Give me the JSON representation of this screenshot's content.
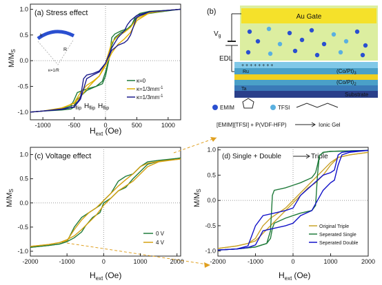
{
  "chart_data": [
    {
      "panel": "(a)",
      "title": "Stress effect",
      "type": "line",
      "xlabel": "H_ext (Oe)",
      "ylabel": "M/M_s",
      "xlim": [
        -1200,
        1200
      ],
      "ylim": [
        -1.15,
        1.1
      ],
      "xticks": [
        -1000,
        -500,
        0,
        500,
        1000
      ],
      "yticks": [
        -1.0,
        -0.5,
        0.0,
        0.5,
        1.0
      ],
      "tick_labels_x": [
        "-1000",
        "-500",
        "0",
        "500",
        "1000"
      ],
      "tick_labels_y": [
        "-1.0",
        "-0.5",
        "0.0",
        "0.5",
        "1.0"
      ],
      "legend": {
        "placement": "bottom-right",
        "entries": [
          "κ=0",
          "κ=1/3mm⁻¹",
          "κ=1/3mm⁻¹"
        ]
      },
      "annotations": [
        "H_flip H_flip H_flip",
        "h",
        "R",
        "κ=1/R"
      ],
      "series": [
        {
          "color": "#1f7a3a",
          "x": [
            -1200,
            -1000,
            -700,
            -550,
            -500,
            -450,
            -300,
            -150,
            -50,
            0,
            60,
            100,
            150,
            250,
            350,
            420,
            480,
            550,
            700,
            1000,
            1200
          ],
          "up": [
            -1.0,
            -0.98,
            -0.94,
            -0.88,
            -0.76,
            -0.62,
            -0.55,
            -0.5,
            -0.4,
            -0.22,
            0.05,
            0.3,
            0.45,
            0.55,
            0.6,
            0.7,
            0.86,
            0.92,
            0.96,
            0.98,
            1.0
          ],
          "down": [
            -1.0,
            -0.98,
            -0.96,
            -0.94,
            -0.9,
            -0.75,
            -0.58,
            -0.5,
            -0.45,
            -0.3,
            0.05,
            0.45,
            0.52,
            0.58,
            0.62,
            0.7,
            0.82,
            0.88,
            0.92,
            0.97,
            1.0
          ]
        },
        {
          "color": "#e0b000",
          "x": [
            -1200,
            -1000,
            -700,
            -500,
            -400,
            -300,
            -200,
            -100,
            0,
            100,
            200,
            300,
            400,
            500,
            700,
            1000,
            1200
          ],
          "up": [
            -1.0,
            -0.98,
            -0.93,
            -0.82,
            -0.62,
            -0.48,
            -0.4,
            -0.3,
            -0.1,
            0.15,
            0.32,
            0.42,
            0.55,
            0.78,
            0.93,
            0.98,
            1.0
          ],
          "down": [
            -1.0,
            -0.98,
            -0.92,
            -0.83,
            -0.7,
            -0.55,
            -0.42,
            -0.3,
            -0.05,
            0.35,
            0.48,
            0.55,
            0.65,
            0.82,
            0.93,
            0.98,
            1.0
          ]
        },
        {
          "color": "#1a1a8c",
          "x": [
            -1200,
            -1000,
            -700,
            -500,
            -400,
            -350,
            -300,
            -200,
            -100,
            0,
            100,
            200,
            300,
            350,
            400,
            500,
            700,
            1000,
            1200
          ],
          "up": [
            -1.0,
            -0.98,
            -0.94,
            -0.9,
            -0.72,
            -0.35,
            -0.28,
            -0.25,
            -0.2,
            -0.05,
            0.2,
            0.3,
            0.35,
            0.4,
            0.5,
            0.85,
            0.95,
            0.98,
            1.0
          ],
          "down": [
            -1.0,
            -0.98,
            -0.95,
            -0.9,
            -0.75,
            -0.55,
            -0.35,
            -0.28,
            -0.22,
            -0.05,
            0.25,
            0.45,
            0.58,
            0.7,
            0.78,
            0.88,
            0.95,
            0.98,
            1.0
          ]
        }
      ]
    },
    {
      "panel": "(c)",
      "title": "Voltage effect",
      "type": "line",
      "xlabel": "H_ext (Oe)",
      "ylabel": "M/M_s",
      "xlim": [
        -2000,
        2100
      ],
      "ylim": [
        -1.1,
        1.15
      ],
      "xticks": [
        -2000,
        -1000,
        0,
        1000,
        2000
      ],
      "yticks": [
        -1.0,
        -0.5,
        0.0,
        0.5,
        1.0
      ],
      "tick_labels_x": [
        "-2000",
        "-1000",
        "0",
        "1000",
        "2000"
      ],
      "tick_labels_y": [
        "-1.0",
        "-0.5",
        "0.0",
        "0.5",
        "1.0"
      ],
      "legend": {
        "placement": "bottom-right",
        "entries": [
          "0 V",
          "4 V"
        ]
      },
      "series": [
        {
          "name": "0 V",
          "color": "#1f7a3a",
          "x": [
            -2000,
            -1500,
            -1200,
            -1000,
            -800,
            -600,
            -500,
            -300,
            -100,
            0,
            200,
            400,
            600,
            800,
            1000,
            1200,
            1500,
            2000,
            2100
          ],
          "up": [
            -0.92,
            -0.88,
            -0.85,
            -0.8,
            -0.5,
            -0.3,
            -0.25,
            -0.15,
            -0.05,
            0.05,
            0.2,
            0.45,
            0.55,
            0.6,
            0.75,
            0.85,
            0.88,
            0.92,
            0.93
          ],
          "down": [
            -0.92,
            -0.88,
            -0.85,
            -0.8,
            -0.72,
            -0.6,
            -0.48,
            -0.3,
            -0.2,
            0.0,
            0.1,
            0.25,
            0.32,
            0.5,
            0.65,
            0.8,
            0.86,
            0.92,
            0.93
          ]
        },
        {
          "name": "4 V",
          "color": "#d4a010",
          "x": [
            -2000,
            -1500,
            -1200,
            -1000,
            -800,
            -600,
            -400,
            -200,
            0,
            200,
            400,
            600,
            800,
            1000,
            1200,
            1500,
            2000,
            2100
          ],
          "up": [
            -0.9,
            -0.86,
            -0.82,
            -0.78,
            -0.55,
            -0.35,
            -0.2,
            -0.1,
            0.05,
            0.2,
            0.35,
            0.48,
            0.6,
            0.75,
            0.82,
            0.86,
            0.9,
            0.91
          ],
          "down": [
            -0.9,
            -0.86,
            -0.82,
            -0.76,
            -0.68,
            -0.55,
            -0.4,
            -0.25,
            -0.05,
            0.1,
            0.25,
            0.35,
            0.45,
            0.6,
            0.75,
            0.85,
            0.9,
            0.91
          ]
        }
      ]
    },
    {
      "panel": "(d)",
      "title": "Single + Double ⟶ Triple",
      "type": "line",
      "xlabel": "H_ext (Oe)",
      "ylabel": "M/M_s",
      "xlim": [
        -2000,
        2000
      ],
      "ylim": [
        -1.1,
        1.05
      ],
      "xticks": [
        -2000,
        -1000,
        0,
        1000,
        2000
      ],
      "yticks": [
        -1.0,
        -0.5,
        0.0,
        0.5,
        1.0
      ],
      "tick_labels_x": [
        "-2000",
        "-1000",
        "0",
        "1000",
        "2000"
      ],
      "tick_labels_y": [
        "-1.0",
        "-0.5",
        "0.0",
        "0.5",
        "1.0"
      ],
      "legend": {
        "placement": "bottom-right",
        "entries": [
          "Original Triple",
          "Seperated Single",
          "Seperated Double"
        ]
      },
      "series": [
        {
          "name": "Original Triple",
          "color": "#c9a227",
          "x": [
            -2000,
            -1500,
            -1200,
            -1000,
            -800,
            -600,
            -400,
            -200,
            0,
            200,
            400,
            600,
            800,
            1000,
            1200,
            1500,
            2000
          ],
          "up": [
            -0.95,
            -0.9,
            -0.85,
            -0.75,
            -0.5,
            -0.35,
            -0.25,
            -0.15,
            0.0,
            0.15,
            0.3,
            0.45,
            0.6,
            0.75,
            0.85,
            0.9,
            0.95
          ],
          "down": [
            -0.95,
            -0.9,
            -0.85,
            -0.8,
            -0.65,
            -0.5,
            -0.35,
            -0.2,
            -0.05,
            0.1,
            0.25,
            0.35,
            0.5,
            0.7,
            0.85,
            0.9,
            0.95
          ]
        },
        {
          "name": "Seperated Single",
          "color": "#1f7a3a",
          "x": [
            -2000,
            -1500,
            -1000,
            -700,
            -600,
            -550,
            -500,
            -200,
            0,
            200,
            500,
            600,
            650,
            700,
            800,
            1000,
            1500,
            2000
          ],
          "up": [
            -0.98,
            -0.96,
            -0.92,
            -0.85,
            -0.6,
            0.1,
            0.2,
            0.25,
            0.3,
            0.35,
            0.45,
            0.55,
            0.7,
            0.88,
            0.95,
            0.97,
            0.98,
            0.99
          ],
          "down": [
            -0.98,
            -0.96,
            -0.92,
            -0.85,
            -0.75,
            -0.55,
            -0.45,
            -0.35,
            -0.3,
            -0.25,
            -0.2,
            -0.1,
            0.5,
            0.88,
            0.95,
            0.97,
            0.98,
            0.99
          ]
        },
        {
          "name": "Seperated Double",
          "color": "#1010c8",
          "x": [
            -2000,
            -1500,
            -1200,
            -1000,
            -800,
            -500,
            -200,
            0,
            200,
            500,
            800,
            1000,
            1100,
            1200,
            1300,
            1500,
            2000
          ],
          "up": [
            -0.98,
            -0.96,
            -0.9,
            -0.5,
            -0.3,
            -0.25,
            -0.2,
            -0.15,
            0.1,
            0.3,
            0.5,
            0.55,
            0.6,
            0.9,
            0.95,
            0.97,
            0.99
          ],
          "down": [
            -0.98,
            -0.96,
            -0.93,
            -0.88,
            -0.6,
            -0.55,
            -0.5,
            -0.45,
            -0.3,
            -0.2,
            0.2,
            0.35,
            0.4,
            0.7,
            0.9,
            0.95,
            0.99
          ]
        }
      ]
    }
  ],
  "labels": {
    "a_title": "(a)  Stress effect",
    "a_ylabel": "M/M",
    "a_ylabel_sub": "S",
    "a_xlabel": "H",
    "a_xlabel_sub": "ext",
    "a_xlabel_unit": "(Oe)",
    "a_leg1": "κ=0",
    "a_leg2": "κ=1/3mm",
    "a_leg3": "κ=1/3mm",
    "a_leg_sup": "-1",
    "a_hflip1": "H",
    "a_hflip2": "H",
    "a_hflip3": "H",
    "a_hflip_sub": "flip",
    "a_inset_h": "h",
    "a_inset_R": "R",
    "a_inset_kappa": "κ=1/R",
    "b_panel": "(b)",
    "b_gate": "Au Gate",
    "b_vg": "V",
    "b_vg_sub": "g",
    "b_edl": "EDL",
    "b_ru": "Ru",
    "b_ta": "Ta",
    "b_copt1": "(Co/Pt)",
    "b_copt2": "(Co/Pt)",
    "b_copt_sub": "3",
    "b_copt_sub2": "2",
    "b_substrate": "Substrate",
    "b_emim": "EMIM",
    "b_tfsi": "TFSI",
    "b_formula": "[EMIM][TFSI] + P(VDF-HFP)",
    "b_gel": "Ionic Gel",
    "c_title": "(c)  Voltage effect",
    "c_leg1": "0 V",
    "c_leg2": "4 V",
    "d_title": "(d)  Single + Double",
    "d_title_right": "Triple",
    "d_leg1": "Original Triple",
    "d_leg2": "Seperated Single",
    "d_leg3": "Seperated Double"
  }
}
